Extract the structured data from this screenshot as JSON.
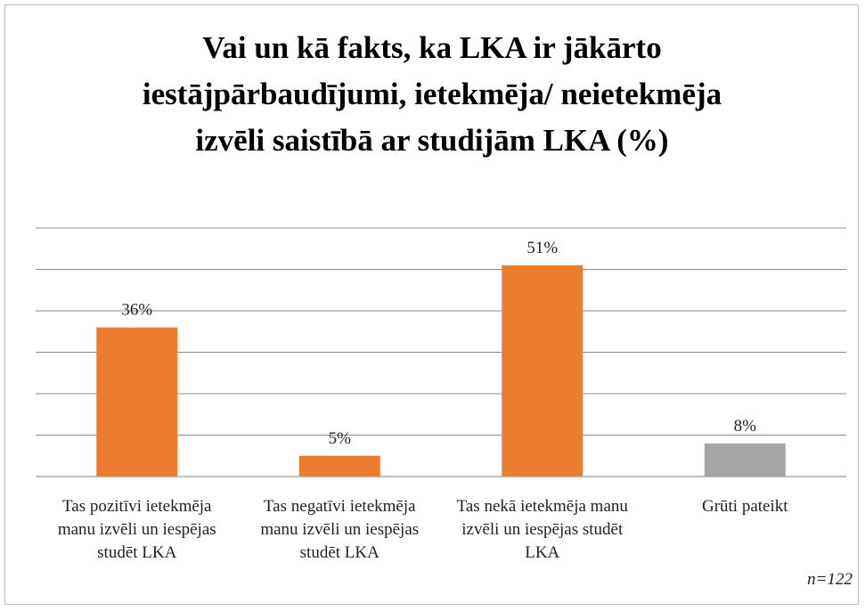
{
  "chart_data": {
    "type": "bar",
    "title": "Vai un kā fakts, ka LKA ir jākārto iestājpārbaudījumi, ietekmēja/ neietekmēja izvēli saistībā ar studijām LKA (%)",
    "categories": [
      "Tas pozitīvi ietekmēja manu izvēli un iespējas studēt LKA",
      "Tas negatīvi ietekmēja manu izvēli un iespējas studēt LKA",
      "Tas nekā ietekmēja manu izvēli un iespējas studēt LKA",
      "Grūti pateikt"
    ],
    "values": [
      36,
      5,
      51,
      8
    ],
    "value_labels": [
      "36%",
      "5%",
      "51%",
      "8%"
    ],
    "colors": [
      "#ed7d31",
      "#ed7d31",
      "#ed7d31",
      "#a5a5a5"
    ],
    "ylim": [
      0,
      60
    ],
    "yticks": [
      0,
      10,
      20,
      30,
      40,
      50,
      60
    ],
    "grid": true,
    "annotation": "n=122"
  }
}
